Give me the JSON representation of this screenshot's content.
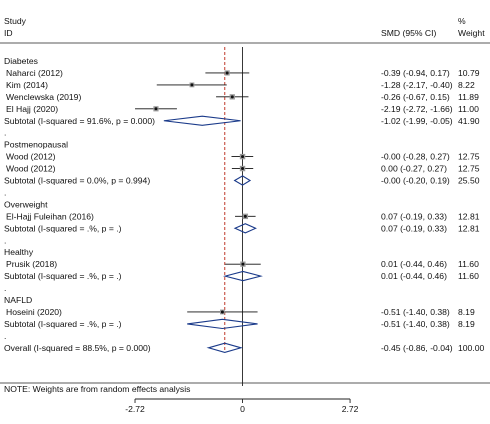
{
  "header": {
    "study_line1": "Study",
    "study_line2": "ID",
    "effect_label": "SMD (95% CI)",
    "weight_line1": "%",
    "weight_line2": "Weight"
  },
  "note": "NOTE: Weights are from random effects analysis",
  "chart_data": {
    "type": "forest",
    "xlim": [
      -3.1,
      3.3
    ],
    "ticks": [
      {
        "value": -2.72,
        "label": "-2.72"
      },
      {
        "value": 0,
        "label": "0"
      },
      {
        "value": 2.72,
        "label": "2.72"
      }
    ],
    "overall_estimate": -0.45,
    "rows": [
      {
        "kind": "group",
        "label": "Diabetes"
      },
      {
        "kind": "study",
        "label": "Naharci (2012)",
        "est": -0.39,
        "lo": -0.94,
        "hi": 0.17,
        "ci_text": "-0.39 (-0.94, 0.17)",
        "weight": 10.79,
        "weight_text": "10.79"
      },
      {
        "kind": "study",
        "label": "Kim (2014)",
        "est": -1.28,
        "lo": -2.17,
        "hi": -0.4,
        "ci_text": "-1.28 (-2.17, -0.40)",
        "weight": 8.22,
        "weight_text": "8.22"
      },
      {
        "kind": "study",
        "label": "Wenclewska (2019)",
        "est": -0.26,
        "lo": -0.67,
        "hi": 0.15,
        "ci_text": "-0.26 (-0.67, 0.15)",
        "weight": 11.89,
        "weight_text": "11.89"
      },
      {
        "kind": "study",
        "label": "El Hajj (2020)",
        "est": -2.19,
        "lo": -2.72,
        "hi": -1.66,
        "ci_text": "-2.19 (-2.72, -1.66)",
        "weight": 11.0,
        "weight_text": "11.00"
      },
      {
        "kind": "subtotal",
        "label": "Subtotal  (I-squared = 91.6%, p = 0.000)",
        "est": -1.02,
        "lo": -1.99,
        "hi": -0.05,
        "ci_text": "-1.02 (-1.99, -0.05)",
        "weight": 41.9,
        "weight_text": "41.90"
      },
      {
        "kind": "blank",
        "label": "."
      },
      {
        "kind": "group",
        "label": "Postmenopausal"
      },
      {
        "kind": "study",
        "label": "Wood (2012)",
        "est": 0.0,
        "lo": -0.28,
        "hi": 0.27,
        "ci_text": "-0.00 (-0.28, 0.27)",
        "weight": 12.75,
        "weight_text": "12.75"
      },
      {
        "kind": "study",
        "label": "Wood (2012)",
        "est": 0.0,
        "lo": -0.27,
        "hi": 0.27,
        "ci_text": "0.00 (-0.27, 0.27)",
        "weight": 12.75,
        "weight_text": "12.75"
      },
      {
        "kind": "subtotal",
        "label": "Subtotal  (I-squared = 0.0%, p = 0.994)",
        "est": 0.0,
        "lo": -0.2,
        "hi": 0.19,
        "ci_text": "-0.00 (-0.20, 0.19)",
        "weight": 25.5,
        "weight_text": "25.50"
      },
      {
        "kind": "blank",
        "label": "."
      },
      {
        "kind": "group",
        "label": "Overweight"
      },
      {
        "kind": "study",
        "label": "El-Hajj Fuleihan (2016)",
        "est": 0.07,
        "lo": -0.19,
        "hi": 0.33,
        "ci_text": "0.07 (-0.19, 0.33)",
        "weight": 12.81,
        "weight_text": "12.81"
      },
      {
        "kind": "subtotal",
        "label": "Subtotal  (I-squared = .%, p = .)",
        "est": 0.07,
        "lo": -0.19,
        "hi": 0.33,
        "ci_text": "0.07 (-0.19, 0.33)",
        "weight": 12.81,
        "weight_text": "12.81"
      },
      {
        "kind": "blank",
        "label": "."
      },
      {
        "kind": "group",
        "label": "Healthy"
      },
      {
        "kind": "study",
        "label": "Prusik (2018)",
        "est": 0.01,
        "lo": -0.44,
        "hi": 0.46,
        "ci_text": "0.01 (-0.44, 0.46)",
        "weight": 11.6,
        "weight_text": "11.60"
      },
      {
        "kind": "subtotal",
        "label": "Subtotal  (I-squared = .%, p = .)",
        "est": 0.01,
        "lo": -0.44,
        "hi": 0.46,
        "ci_text": "0.01 (-0.44, 0.46)",
        "weight": 11.6,
        "weight_text": "11.60"
      },
      {
        "kind": "blank",
        "label": "."
      },
      {
        "kind": "group",
        "label": "NAFLD"
      },
      {
        "kind": "study",
        "label": "Hoseini (2020)",
        "est": -0.51,
        "lo": -1.4,
        "hi": 0.38,
        "ci_text": "-0.51 (-1.40, 0.38)",
        "weight": 8.19,
        "weight_text": "8.19"
      },
      {
        "kind": "subtotal",
        "label": "Subtotal  (I-squared = .%, p = .)",
        "est": -0.51,
        "lo": -1.4,
        "hi": 0.38,
        "ci_text": "-0.51 (-1.40, 0.38)",
        "weight": 8.19,
        "weight_text": "8.19"
      },
      {
        "kind": "blank",
        "label": "."
      },
      {
        "kind": "overall",
        "label": "Overall  (I-squared = 88.5%, p = 0.000)",
        "est": -0.45,
        "lo": -0.86,
        "hi": -0.04,
        "ci_text": "-0.45 (-0.86, -0.04)",
        "weight": 100,
        "weight_text": "100.00"
      }
    ]
  }
}
